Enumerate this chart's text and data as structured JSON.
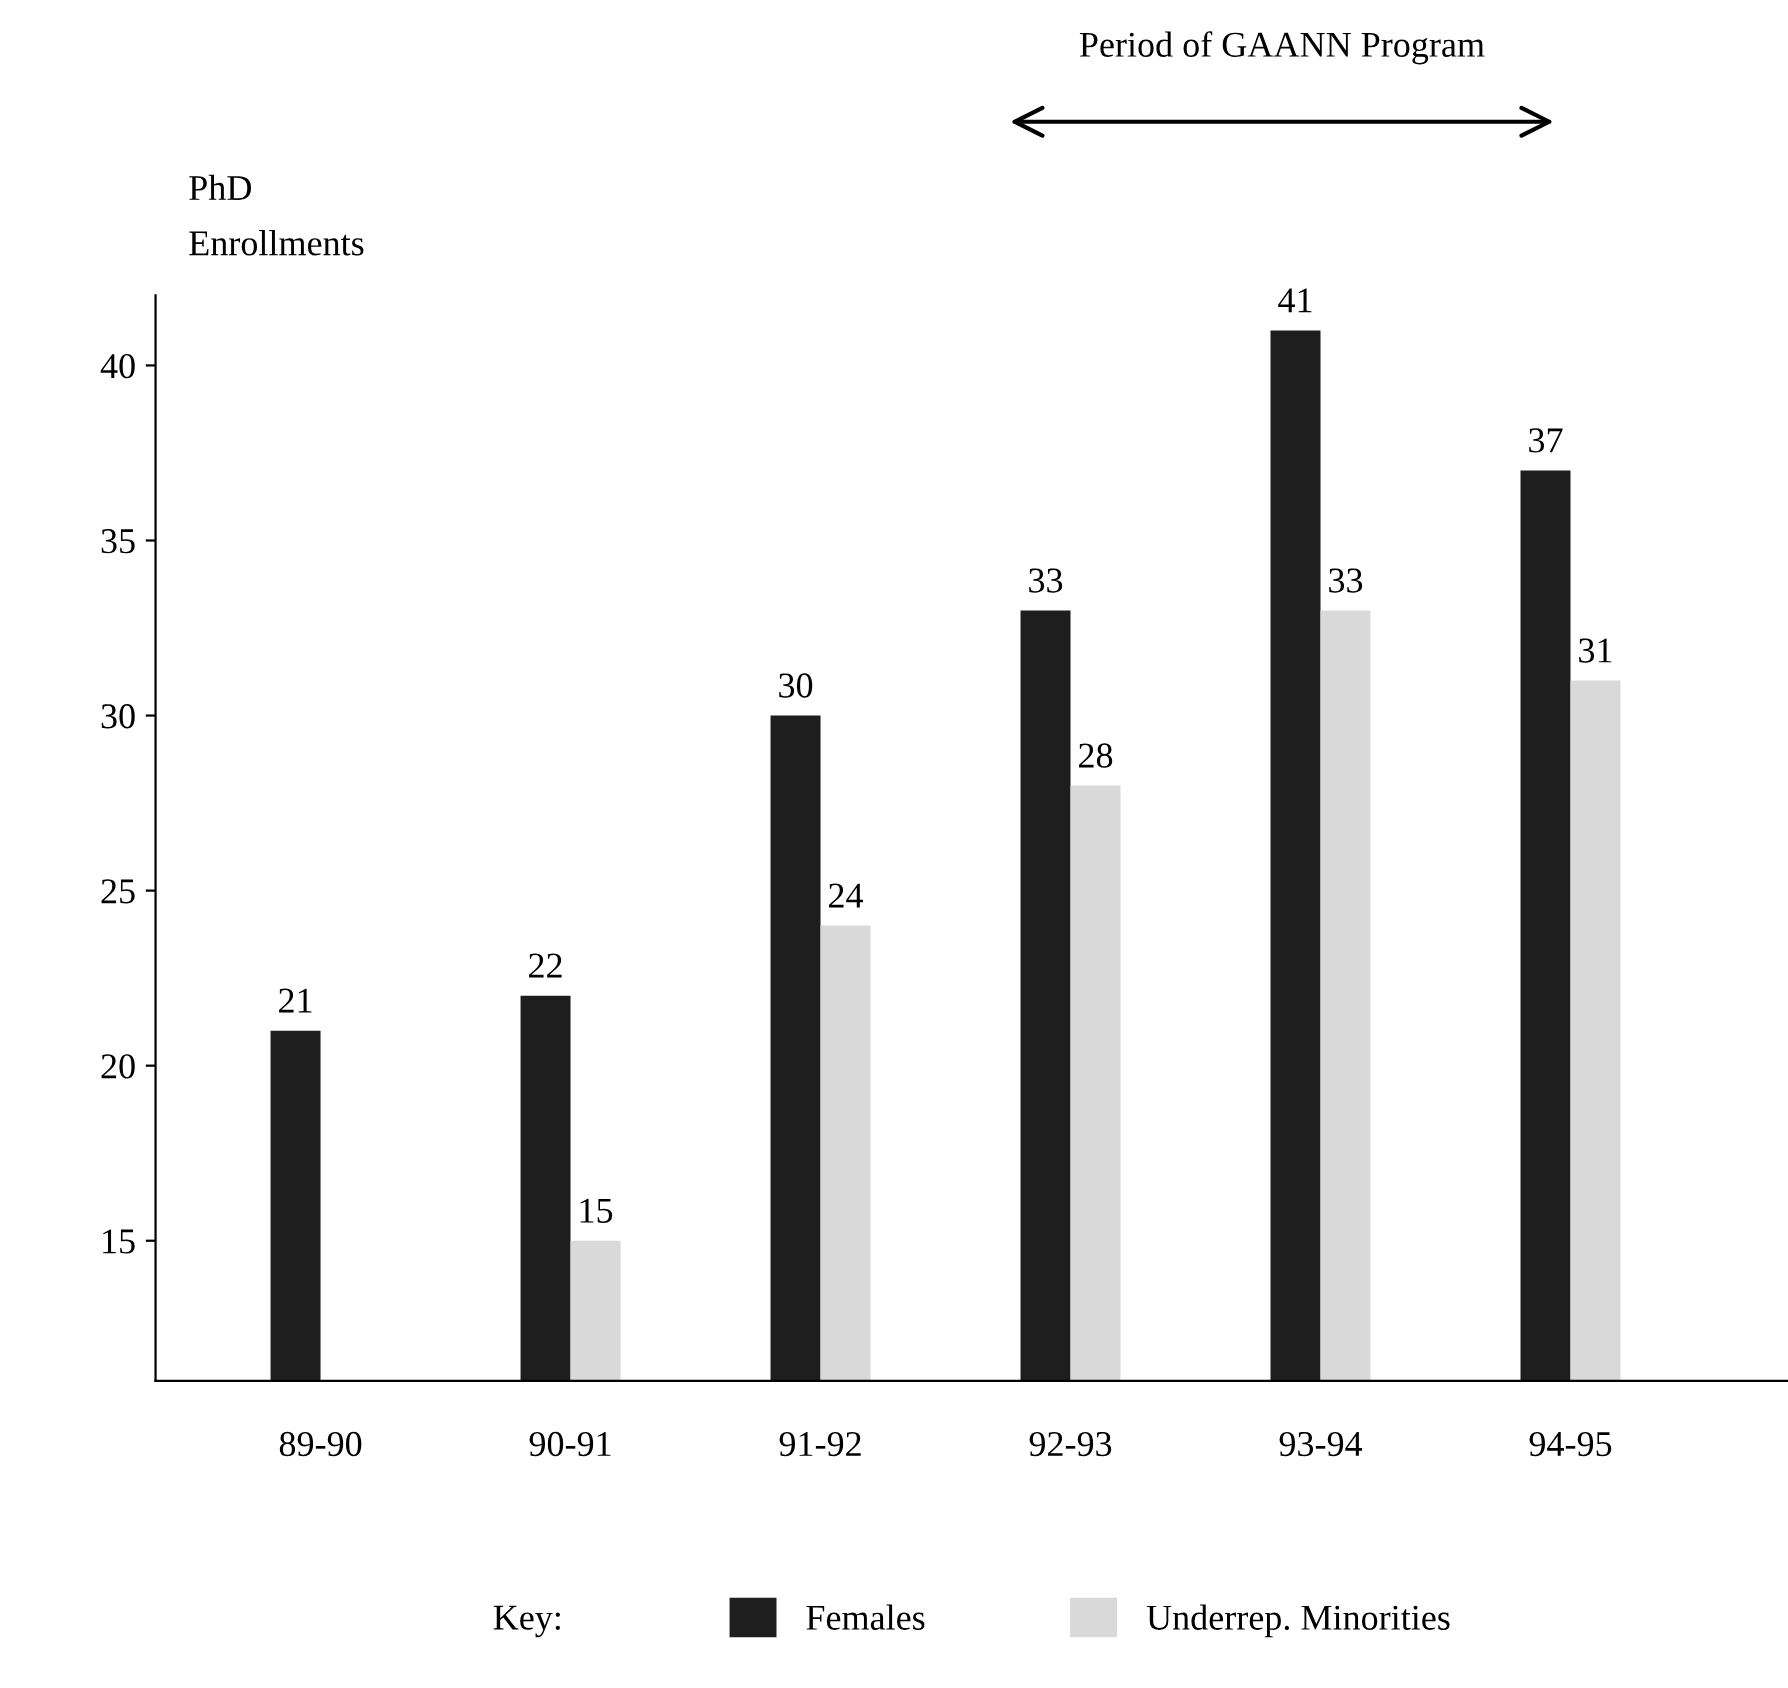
{
  "chart_data": {
    "type": "bar",
    "ylabel": "PhD\nEnrollments",
    "legend_title": "Key:",
    "categories": [
      "89-90",
      "90-91",
      "91-92",
      "92-93",
      "93-94",
      "94-95"
    ],
    "series": [
      {
        "name": "Females",
        "color": "#1e1e1e",
        "values": [
          21,
          22,
          30,
          33,
          41,
          37
        ]
      },
      {
        "name": "Underrep. Minorities",
        "color": "#d9d9d9",
        "values": [
          null,
          15,
          24,
          28,
          33,
          31
        ]
      }
    ],
    "ylim": [
      11,
      42
    ],
    "yticks": [
      15,
      20,
      25,
      30,
      35,
      40
    ],
    "annotations": [
      "Period of GAANN Program"
    ],
    "data_labels": true,
    "grid": false,
    "legend": "bottom"
  }
}
